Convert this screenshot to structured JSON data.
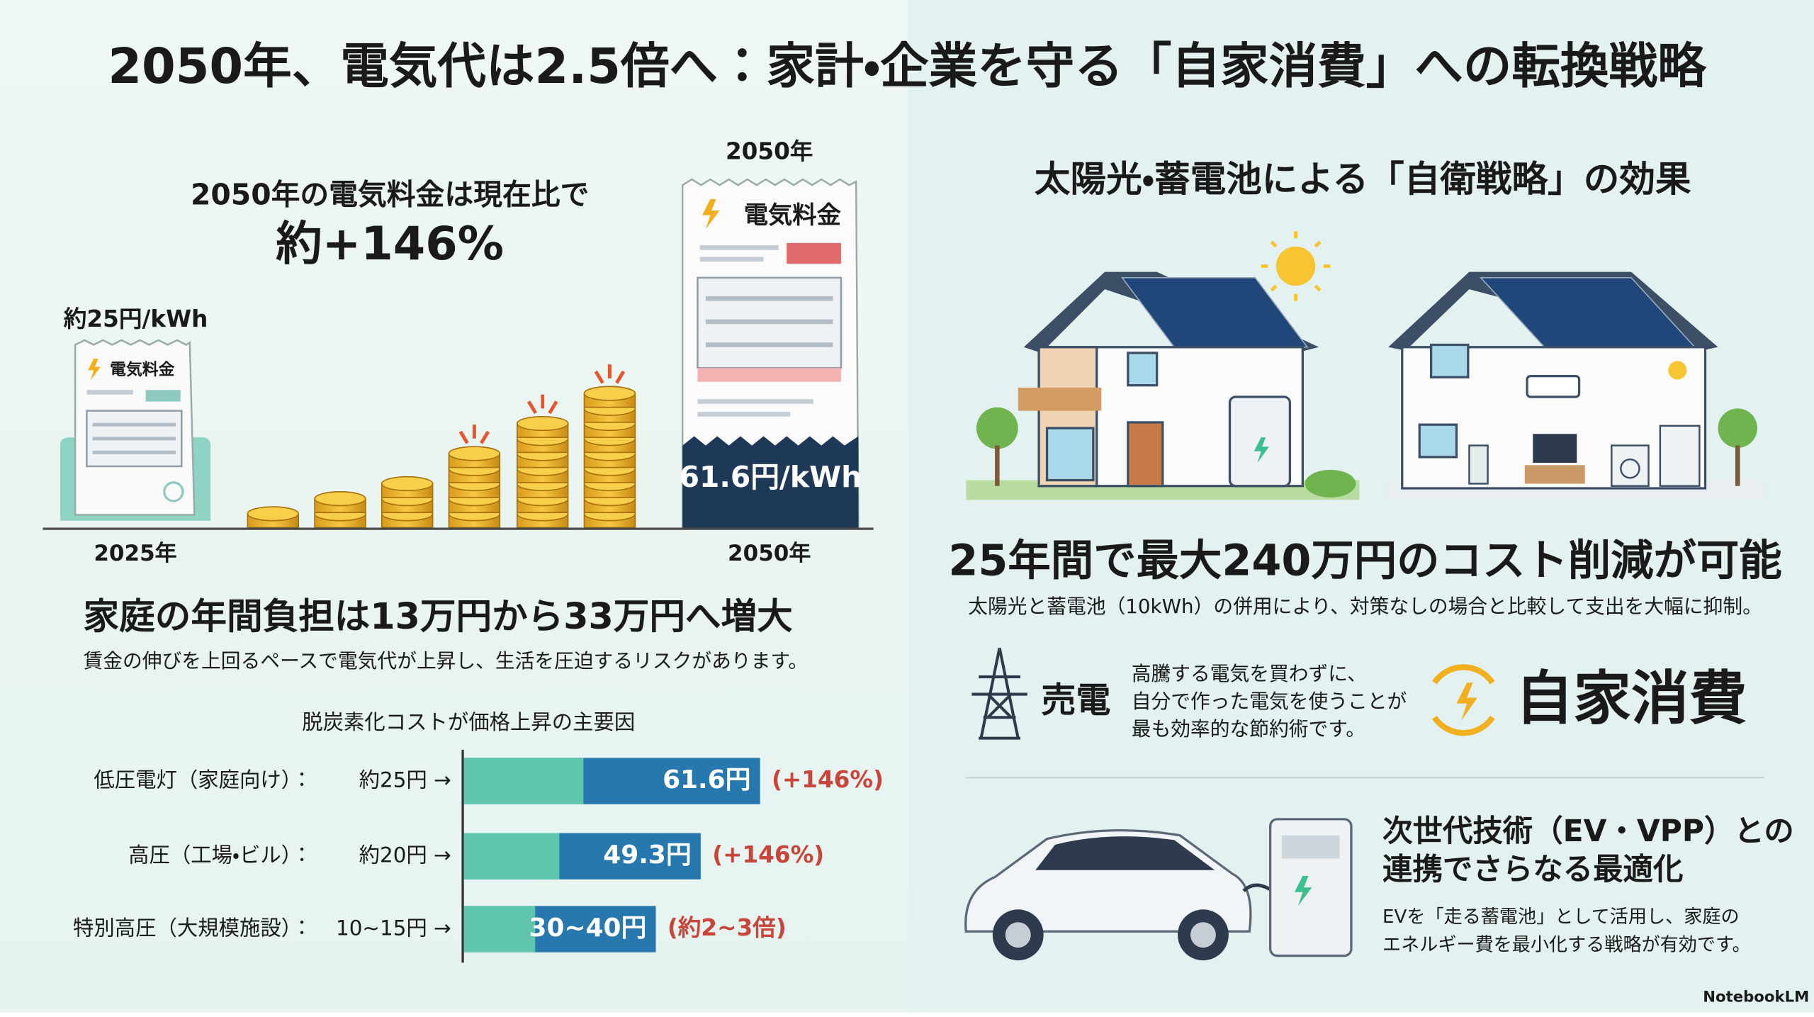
{
  "title": "2050年、電気代は2.5倍へ：家計・企業を守る「自家消費」への転換戦略",
  "left": {
    "headline": "2050年の電気料金は現在比で",
    "headline_value": "約+146%",
    "current_price": "約25円/kWh",
    "current_bill": "電気料金",
    "current_year": "2025年",
    "future_year_top": "2050年",
    "future_bill": "電気料金",
    "future_price": "61.6円/kWh",
    "future_year": "2050年",
    "household_heading": "家庭の年間負担は13万円から33万円へ増大",
    "household_text": "賃金の伸びを上回るペースで電気代が上昇し、生活を圧迫するリスクがあります。",
    "bars": {
      "type": "bar",
      "title": "脱炭素化コストが価格上昇の主要因",
      "categories": [
        "低圧電灯（家庭向け）：",
        "高圧（工場・ビル）：",
        "特別高圧（大規模施設）："
      ],
      "base_values": [
        25,
        20,
        15
      ],
      "base_labels": [
        "約25円 →",
        "約20円 →",
        "10~15円 →"
      ],
      "values": [
        61.6,
        49.3,
        40
      ],
      "value_labels": [
        "61.6円",
        "49.3円",
        "30~40円"
      ],
      "change_labels": [
        "(+146%)",
        "(+146%)",
        "(約2~3倍)"
      ],
      "base_color": "#5fc6ad",
      "color": "#2878b0"
    }
  },
  "right": {
    "heading": "太陽光・蓄電池による「自衛戦略」の効果",
    "saving_heading": "25年間で最大240万円のコスト削減が可能",
    "saving_text": "太陽光と蓄電池（10kWh）の併用により、対策なしの場合と比較して支出を大幅に抑制。",
    "sell_label": "売電",
    "self_text": [
      "高騰する電気を買わずに、",
      "自分で作った電気を使うことが",
      "最も効率的な節約術です。"
    ],
    "self_label": "自家消費",
    "ev_heading": [
      "次世代技術（EV・VPP）との",
      "連携でさらなる最適化"
    ],
    "ev_text": [
      "EVを「走る蓄電池」として活用し、家庭の",
      "エネルギー費を最小化する戦略が有効です。"
    ]
  },
  "footer": "NotebookLM"
}
